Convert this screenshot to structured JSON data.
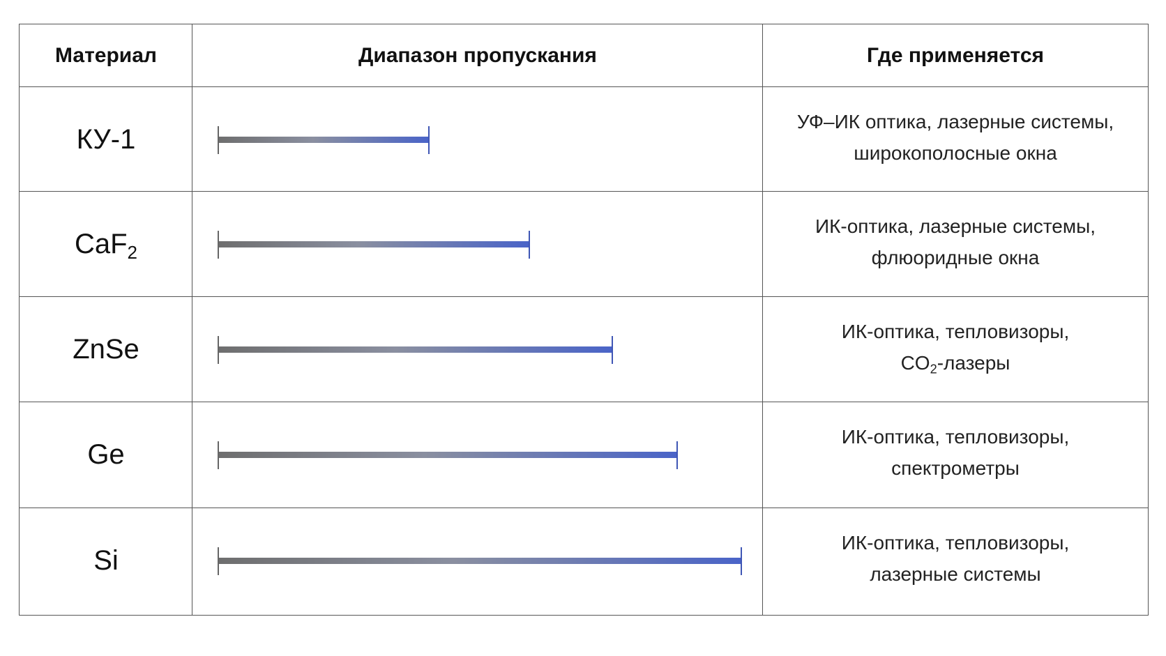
{
  "header": {
    "material": "Материал",
    "range": "Диапазон пропускания",
    "application": "Где применяется"
  },
  "rows": [
    {
      "material": "КУ-1",
      "application": [
        "УФ–ИК оптика, лазерные системы,",
        "широкополосные окна"
      ]
    },
    {
      "material": "CaF",
      "material_sub": "2",
      "application": [
        "ИК-оптика, лазерные системы,",
        "флюоридные окна"
      ]
    },
    {
      "material": "ZnSe",
      "application": [
        "ИК-оптика, тепловизоры,",
        {
          "text": "CO",
          "sub": "2",
          "after": "-лазеры"
        }
      ]
    },
    {
      "material": "Ge",
      "application": [
        "ИК-оптика, тепловизоры,",
        "спектрометры"
      ]
    },
    {
      "material": "Si",
      "application": [
        "ИК-оптика, тепловизоры,",
        "лазерные системы"
      ]
    }
  ]
}
